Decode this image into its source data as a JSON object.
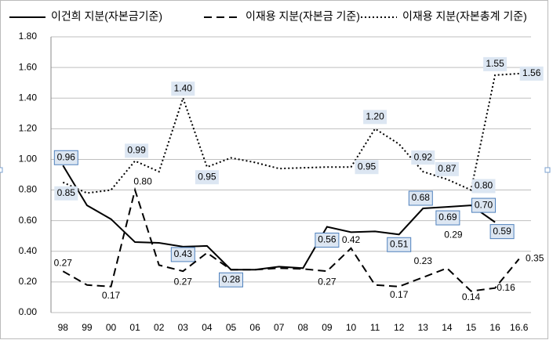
{
  "chart_data": {
    "type": "line",
    "categories": [
      "98",
      "99",
      "00",
      "01",
      "02",
      "03",
      "04",
      "05",
      "06",
      "07",
      "08",
      "09",
      "10",
      "11",
      "12",
      "13",
      "14",
      "15",
      "16",
      "16.6"
    ],
    "ylim": [
      0,
      1.8
    ],
    "yticks": [
      {
        "value": 0,
        "label": "0.00"
      },
      {
        "value": 0.2,
        "label": "0.20"
      },
      {
        "value": 0.4,
        "label": "0.40"
      },
      {
        "value": 0.6,
        "label": "0.60"
      },
      {
        "value": 0.8,
        "label": "0.80"
      },
      {
        "value": 1.0,
        "label": "1.00"
      },
      {
        "value": 1.2,
        "label": "1.20"
      },
      {
        "value": 1.4,
        "label": "1.40"
      },
      {
        "value": 1.6,
        "label": "1.60"
      },
      {
        "value": 1.8,
        "label": "1.80"
      }
    ],
    "grid": true,
    "legend": "top",
    "series": [
      {
        "name": "이건희 지분(자본금기준)",
        "color": "#000000",
        "line_style": "solid",
        "values": [
          0.96,
          0.7,
          0.61,
          0.46,
          0.455,
          0.43,
          0.435,
          0.28,
          0.28,
          0.3,
          0.29,
          0.56,
          0.525,
          0.53,
          0.51,
          0.68,
          0.69,
          0.7,
          0.59,
          null
        ],
        "value_labels": [
          "0.96",
          null,
          null,
          null,
          null,
          "0.43",
          null,
          "0.28",
          null,
          null,
          null,
          "0.56",
          null,
          null,
          "0.51",
          "0.68",
          "0.69",
          "0.70",
          "0.59",
          null
        ]
      },
      {
        "name": "이재용 지분(자본금 기준)",
        "color": "#000000",
        "line_style": "dashed",
        "values": [
          0.27,
          0.18,
          0.17,
          0.8,
          0.31,
          0.27,
          0.39,
          0.28,
          0.28,
          0.29,
          0.285,
          0.27,
          0.42,
          0.18,
          0.17,
          0.23,
          0.29,
          0.14,
          0.16,
          0.35
        ],
        "value_labels": [
          "0.27",
          null,
          "0.17",
          "0.80",
          null,
          "0.27",
          null,
          null,
          null,
          null,
          null,
          "0.27",
          "0.42",
          null,
          "0.17",
          "0.23",
          "0.29",
          "0.14",
          "0.16",
          "0.35"
        ]
      },
      {
        "name": "이재용 지분(자본총계 기준)",
        "color": "#000000",
        "line_style": "dotted",
        "values": [
          0.85,
          0.78,
          0.8,
          0.99,
          0.92,
          1.4,
          0.95,
          1.01,
          0.98,
          0.94,
          0.945,
          0.95,
          0.95,
          1.2,
          1.1,
          0.92,
          0.87,
          0.8,
          1.55,
          1.56
        ],
        "value_labels": [
          "0.85",
          null,
          null,
          "0.99",
          null,
          "1.40",
          "0.95",
          null,
          null,
          null,
          null,
          null,
          "0.95",
          "1.20",
          null,
          "0.92",
          "0.87",
          "0.80",
          "1.55",
          "1.56"
        ]
      }
    ]
  }
}
